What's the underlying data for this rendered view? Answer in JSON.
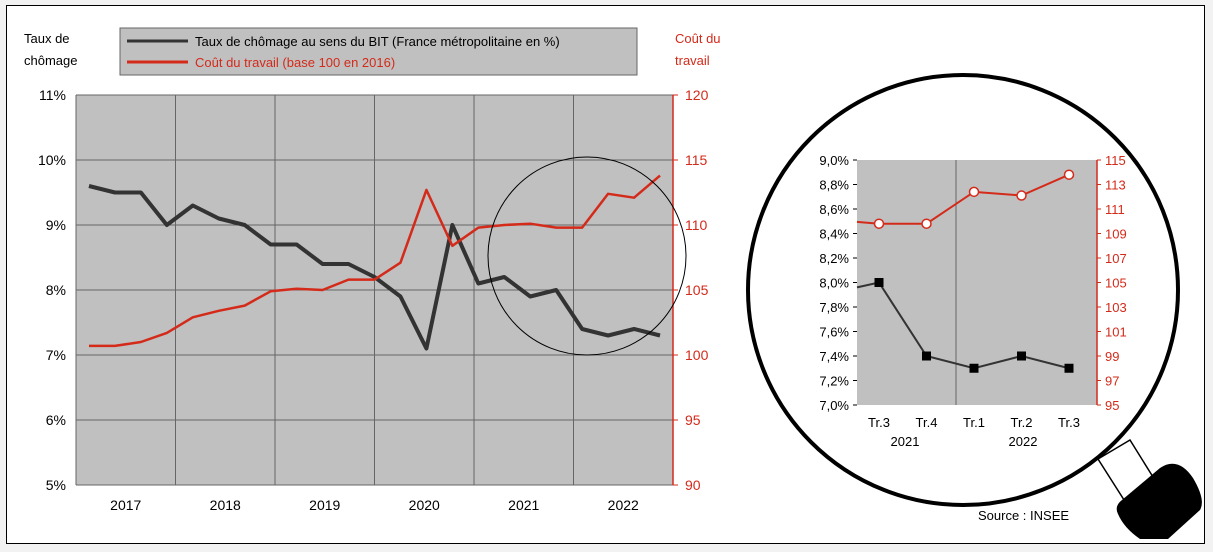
{
  "colors": {
    "unemployment": "#333333",
    "labour_cost": "#d42a1a",
    "plot_bg": "#c0c0c0",
    "legend_bg": "#c0c0c0",
    "grid": "#666666"
  },
  "main_chart": {
    "left_axis_title_line1": "Taux de",
    "left_axis_title_line2": "chômage",
    "right_axis_title_line1": "Coût du",
    "right_axis_title_line2": "travail"
  },
  "zoom_chart": {
    "year_labels": [
      "2021",
      "2022"
    ]
  },
  "source": "Source : INSEE",
  "chart_data": [
    {
      "type": "line",
      "series": [
        {
          "name": "Taux de chômage au sens du BIT (France métropolitaine en %)",
          "axis": "left",
          "x": [
            "2017T1",
            "2017T2",
            "2017T3",
            "2017T4",
            "2018T1",
            "2018T2",
            "2018T3",
            "2018T4",
            "2019T1",
            "2019T2",
            "2019T3",
            "2019T4",
            "2020T1",
            "2020T2",
            "2020T3",
            "2020T4",
            "2021T1",
            "2021T2",
            "2021T3",
            "2021T4",
            "2022T1",
            "2022T2",
            "2022T3"
          ],
          "values": [
            9.6,
            9.5,
            9.5,
            9.0,
            9.3,
            9.1,
            9.0,
            8.7,
            8.7,
            8.4,
            8.4,
            8.2,
            7.9,
            7.1,
            9.0,
            8.1,
            8.2,
            7.9,
            8.0,
            7.4,
            7.3,
            7.4,
            7.3
          ]
        },
        {
          "name": "Coût du travail (base 100 en 2016)",
          "axis": "right",
          "x": [
            "2017T1",
            "2017T2",
            "2017T3",
            "2017T4",
            "2018T1",
            "2018T2",
            "2018T3",
            "2018T4",
            "2019T1",
            "2019T2",
            "2019T3",
            "2019T4",
            "2020T1",
            "2020T2",
            "2020T3",
            "2020T4",
            "2021T1",
            "2021T2",
            "2021T3",
            "2021T4",
            "2022T1",
            "2022T2",
            "2022T3"
          ],
          "values": [
            100.7,
            100.7,
            101.0,
            101.7,
            102.9,
            103.4,
            103.8,
            104.9,
            105.1,
            105.0,
            105.8,
            105.8,
            107.1,
            112.7,
            108.4,
            109.8,
            110.0,
            110.1,
            109.8,
            109.8,
            112.4,
            112.1,
            113.8
          ]
        }
      ],
      "x_tick_labels": [
        "2017",
        "2018",
        "2019",
        "2020",
        "2021",
        "2022"
      ],
      "left_axis": {
        "ylim": [
          5,
          11
        ],
        "tick_labels": [
          "5%",
          "6%",
          "7%",
          "8%",
          "9%",
          "10%",
          "11%"
        ]
      },
      "right_axis": {
        "ylim": [
          90,
          120
        ],
        "tick_labels": [
          "90",
          "95",
          "100",
          "105",
          "110",
          "115",
          "120"
        ]
      },
      "grid": true
    },
    {
      "type": "line",
      "categories": [
        "Tr.3",
        "Tr.4",
        "Tr.1",
        "Tr.2",
        "Tr.3"
      ],
      "series": [
        {
          "axis": "left",
          "values": [
            8.0,
            7.4,
            7.3,
            7.4,
            7.3
          ],
          "marker": "square"
        },
        {
          "axis": "right",
          "values": [
            109.8,
            109.8,
            112.4,
            112.1,
            113.8
          ],
          "marker": "circle"
        }
      ],
      "left_axis": {
        "ylim": [
          7.0,
          9.0
        ],
        "tick_labels": [
          "7,0%",
          "7,2%",
          "7,4%",
          "7,6%",
          "7,8%",
          "8,0%",
          "8,2%",
          "8,4%",
          "8,6%",
          "8,8%",
          "9,0%"
        ]
      },
      "right_axis": {
        "ylim": [
          95,
          115
        ],
        "tick_labels": [
          "95",
          "97",
          "99",
          "101",
          "103",
          "105",
          "107",
          "109",
          "111",
          "113",
          "115"
        ]
      },
      "grid": true
    }
  ]
}
